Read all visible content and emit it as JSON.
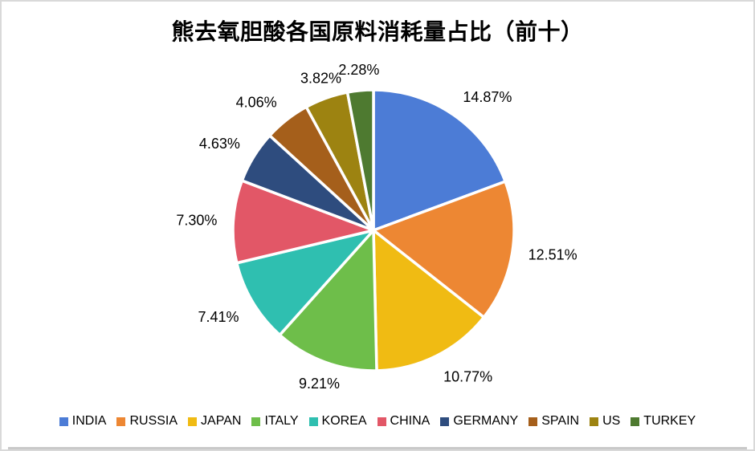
{
  "chart_data": {
    "type": "pie",
    "title": "熊去氧胆酸各国原料消耗量占比（前十）",
    "categories": [
      "INDIA",
      "RUSSIA",
      "JAPAN",
      "ITALY",
      "KOREA",
      "CHINA",
      "GERMANY",
      "SPAIN",
      "US",
      "TURKEY"
    ],
    "values": [
      14.87,
      12.51,
      10.77,
      9.21,
      7.41,
      7.3,
      4.63,
      4.06,
      3.82,
      2.28
    ],
    "data_labels": [
      "14.87%",
      "12.51%",
      "10.77%",
      "9.21%",
      "7.41%",
      "7.30%",
      "4.63%",
      "4.06%",
      "3.82%",
      "2.28%"
    ],
    "colors": [
      "#4c7cd6",
      "#ed8733",
      "#f0bb13",
      "#6ebe4a",
      "#2fbfb0",
      "#e25767",
      "#2e4c7e",
      "#a55f1b",
      "#9d8311",
      "#4e7a30"
    ],
    "start_angle_deg": 0,
    "direction": "clockwise",
    "legend_position": "bottom",
    "labels_position": "outside-end"
  }
}
